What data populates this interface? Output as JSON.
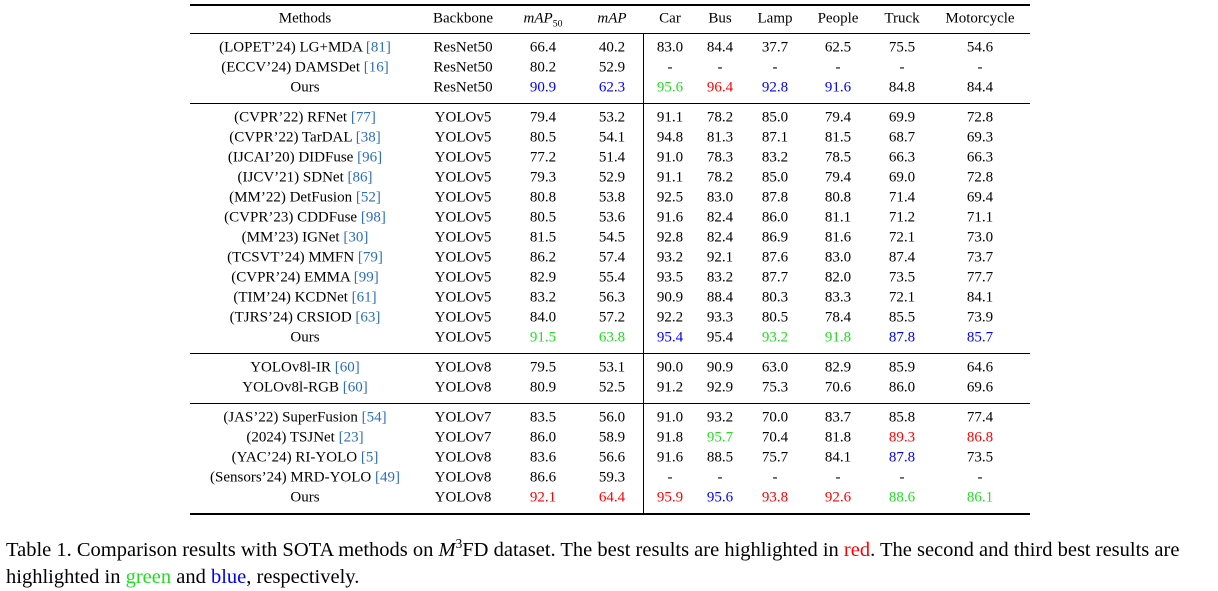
{
  "table": {
    "header": [
      {
        "text": "Methods"
      },
      {
        "text": "Backbone"
      },
      {
        "text": "mAP",
        "sub": "50",
        "italic": true
      },
      {
        "text": "mAP",
        "italic": true
      },
      {
        "text": "Car"
      },
      {
        "text": "Bus"
      },
      {
        "text": "Lamp"
      },
      {
        "text": "People"
      },
      {
        "text": "Truck"
      },
      {
        "text": "Motorcycle"
      }
    ],
    "groups": [
      [
        {
          "method": "(LOPET’24) LG+MDA ",
          "ref": "[81]",
          "backbone": "ResNet50",
          "values": [
            "66.4",
            "40.2",
            "83.0",
            "84.4",
            "37.7",
            "62.5",
            "75.5",
            "54.6"
          ],
          "colors": [
            null,
            null,
            null,
            null,
            null,
            null,
            null,
            null
          ]
        },
        {
          "method": "(ECCV’24) DAMSDet ",
          "ref": "[16]",
          "backbone": "ResNet50",
          "values": [
            "80.2",
            "52.9",
            "-",
            "-",
            "-",
            "-",
            "-",
            "-"
          ],
          "colors": [
            null,
            null,
            null,
            null,
            null,
            null,
            null,
            null
          ]
        },
        {
          "method": "Ours",
          "ref": null,
          "backbone": "ResNet50",
          "values": [
            "90.9",
            "62.3",
            "95.6",
            "96.4",
            "92.8",
            "91.6",
            "84.8",
            "84.4"
          ],
          "colors": [
            "blue",
            "blue",
            "#22dd22",
            "red",
            "blue",
            "blue",
            null,
            null
          ]
        }
      ],
      [
        {
          "method": "(CVPR’22) RFNet ",
          "ref": "[77]",
          "backbone": "YOLOv5",
          "values": [
            "79.4",
            "53.2",
            "91.1",
            "78.2",
            "85.0",
            "79.4",
            "69.9",
            "72.8"
          ],
          "colors": [
            null,
            null,
            null,
            null,
            null,
            null,
            null,
            null
          ]
        },
        {
          "method": "(CVPR’22) TarDAL ",
          "ref": "[38]",
          "backbone": "YOLOv5",
          "values": [
            "80.5",
            "54.1",
            "94.8",
            "81.3",
            "87.1",
            "81.5",
            "68.7",
            "69.3"
          ],
          "colors": [
            null,
            null,
            null,
            null,
            null,
            null,
            null,
            null
          ]
        },
        {
          "method": "(IJCAI’20) DIDFuse ",
          "ref": "[96]",
          "backbone": "YOLOv5",
          "values": [
            "77.2",
            "51.4",
            "91.0",
            "78.3",
            "83.2",
            "78.5",
            "66.3",
            "66.3"
          ],
          "colors": [
            null,
            null,
            null,
            null,
            null,
            null,
            null,
            null
          ]
        },
        {
          "method": "(IJCV’21) SDNet ",
          "ref": "[86]",
          "backbone": "YOLOv5",
          "values": [
            "79.3",
            "52.9",
            "91.1",
            "78.2",
            "85.0",
            "79.4",
            "69.0",
            "72.8"
          ],
          "colors": [
            null,
            null,
            null,
            null,
            null,
            null,
            null,
            null
          ]
        },
        {
          "method": "(MM’22) DetFusion ",
          "ref": "[52]",
          "backbone": "YOLOv5",
          "values": [
            "80.8",
            "53.8",
            "92.5",
            "83.0",
            "87.8",
            "80.8",
            "71.4",
            "69.4"
          ],
          "colors": [
            null,
            null,
            null,
            null,
            null,
            null,
            null,
            null
          ]
        },
        {
          "method": "(CVPR’23) CDDFuse ",
          "ref": "[98]",
          "backbone": "YOLOv5",
          "values": [
            "80.5",
            "53.6",
            "91.6",
            "82.4",
            "86.0",
            "81.1",
            "71.2",
            "71.1"
          ],
          "colors": [
            null,
            null,
            null,
            null,
            null,
            null,
            null,
            null
          ]
        },
        {
          "method": "(MM’23) IGNet ",
          "ref": "[30]",
          "backbone": "YOLOv5",
          "values": [
            "81.5",
            "54.5",
            "92.8",
            "82.4",
            "86.9",
            "81.6",
            "72.1",
            "73.0"
          ],
          "colors": [
            null,
            null,
            null,
            null,
            null,
            null,
            null,
            null
          ]
        },
        {
          "method": "(TCSVT’24) MMFN ",
          "ref": "[79]",
          "backbone": "YOLOv5",
          "values": [
            "86.2",
            "57.4",
            "93.2",
            "92.1",
            "87.6",
            "83.0",
            "87.4",
            "73.7"
          ],
          "colors": [
            null,
            null,
            null,
            null,
            null,
            null,
            null,
            null
          ]
        },
        {
          "method": "(CVPR’24) EMMA ",
          "ref": "[99]",
          "backbone": "YOLOv5",
          "values": [
            "82.9",
            "55.4",
            "93.5",
            "83.2",
            "87.7",
            "82.0",
            "73.5",
            "77.7"
          ],
          "colors": [
            null,
            null,
            null,
            null,
            null,
            null,
            null,
            null
          ]
        },
        {
          "method": "(TIM’24) KCDNet ",
          "ref": "[61]",
          "backbone": "YOLOv5",
          "values": [
            "83.2",
            "56.3",
            "90.9",
            "88.4",
            "80.3",
            "83.3",
            "72.1",
            "84.1"
          ],
          "colors": [
            null,
            null,
            null,
            null,
            null,
            null,
            null,
            null
          ]
        },
        {
          "method": "(TJRS’24) CRSIOD ",
          "ref": "[63]",
          "backbone": "YOLOv5",
          "values": [
            "84.0",
            "57.2",
            "92.2",
            "93.3",
            "80.5",
            "78.4",
            "85.5",
            "73.9"
          ],
          "colors": [
            null,
            null,
            null,
            null,
            null,
            null,
            null,
            null
          ]
        },
        {
          "method": "Ours",
          "ref": null,
          "backbone": "YOLOv5",
          "values": [
            "91.5",
            "63.8",
            "95.4",
            "95.4",
            "93.2",
            "91.8",
            "87.8",
            "85.7"
          ],
          "colors": [
            "#22dd22",
            "#22dd22",
            "blue",
            null,
            "#22dd22",
            "#22dd22",
            "blue",
            "blue"
          ]
        }
      ],
      [
        {
          "method": "YOLOv8l-IR ",
          "ref": "[60]",
          "backbone": "YOLOv8",
          "values": [
            "79.5",
            "53.1",
            "90.0",
            "90.9",
            "63.0",
            "82.9",
            "85.9",
            "64.6"
          ],
          "colors": [
            null,
            null,
            null,
            null,
            null,
            null,
            null,
            null
          ]
        },
        {
          "method": "YOLOv8l-RGB ",
          "ref": "[60]",
          "backbone": "YOLOv8",
          "values": [
            "80.9",
            "52.5",
            "91.2",
            "92.9",
            "75.3",
            "70.6",
            "86.0",
            "69.6"
          ],
          "colors": [
            null,
            null,
            null,
            null,
            null,
            null,
            null,
            null
          ]
        }
      ],
      [
        {
          "method": "(JAS’22) SuperFusion ",
          "ref": "[54]",
          "backbone": "YOLOv7",
          "values": [
            "83.5",
            "56.0",
            "91.0",
            "93.2",
            "70.0",
            "83.7",
            "85.8",
            "77.4"
          ],
          "colors": [
            null,
            null,
            null,
            null,
            null,
            null,
            null,
            null
          ]
        },
        {
          "method": "(2024) TSJNet ",
          "ref": "[23]",
          "backbone": "YOLOv7",
          "values": [
            "86.0",
            "58.9",
            "91.8",
            "95.7",
            "70.4",
            "81.8",
            "89.3",
            "86.8"
          ],
          "colors": [
            null,
            null,
            null,
            "#22dd22",
            null,
            null,
            "red",
            "red"
          ]
        },
        {
          "method": "(YAC’24) RI-YOLO ",
          "ref": "[5]",
          "backbone": "YOLOv8",
          "values": [
            "83.6",
            "56.6",
            "91.6",
            "88.5",
            "75.7",
            "84.1",
            "87.8",
            "73.5"
          ],
          "colors": [
            null,
            null,
            null,
            null,
            null,
            null,
            "blue",
            null
          ]
        },
        {
          "method": "(Sensors’24) MRD-YOLO ",
          "ref": "[49]",
          "backbone": "YOLOv8",
          "values": [
            "86.6",
            "59.3",
            "-",
            "-",
            "-",
            "-",
            "-",
            "-"
          ],
          "colors": [
            null,
            null,
            null,
            null,
            null,
            null,
            null,
            null
          ]
        },
        {
          "method": "Ours",
          "ref": null,
          "backbone": "YOLOv8",
          "values": [
            "92.1",
            "64.4",
            "95.9",
            "95.6",
            "93.8",
            "92.6",
            "88.6",
            "86.1"
          ],
          "colors": [
            "red",
            "red",
            "red",
            "blue",
            "red",
            "red",
            "#22dd22",
            "#22dd22"
          ]
        }
      ]
    ]
  },
  "caption": [
    {
      "text": "Table 1.  Comparison results with SOTA methods on "
    },
    {
      "text": "M",
      "sup": "3",
      "italic": true
    },
    {
      "text": "FD dataset.  The best results are highlighted in "
    },
    {
      "text": "red",
      "color": "red"
    },
    {
      "text": ".  The second and third best results are highlighted in "
    },
    {
      "text": "green",
      "color": "#22dd22"
    },
    {
      "text": " and "
    },
    {
      "text": "blue",
      "color": "blue"
    },
    {
      "text": ", respectively."
    }
  ]
}
